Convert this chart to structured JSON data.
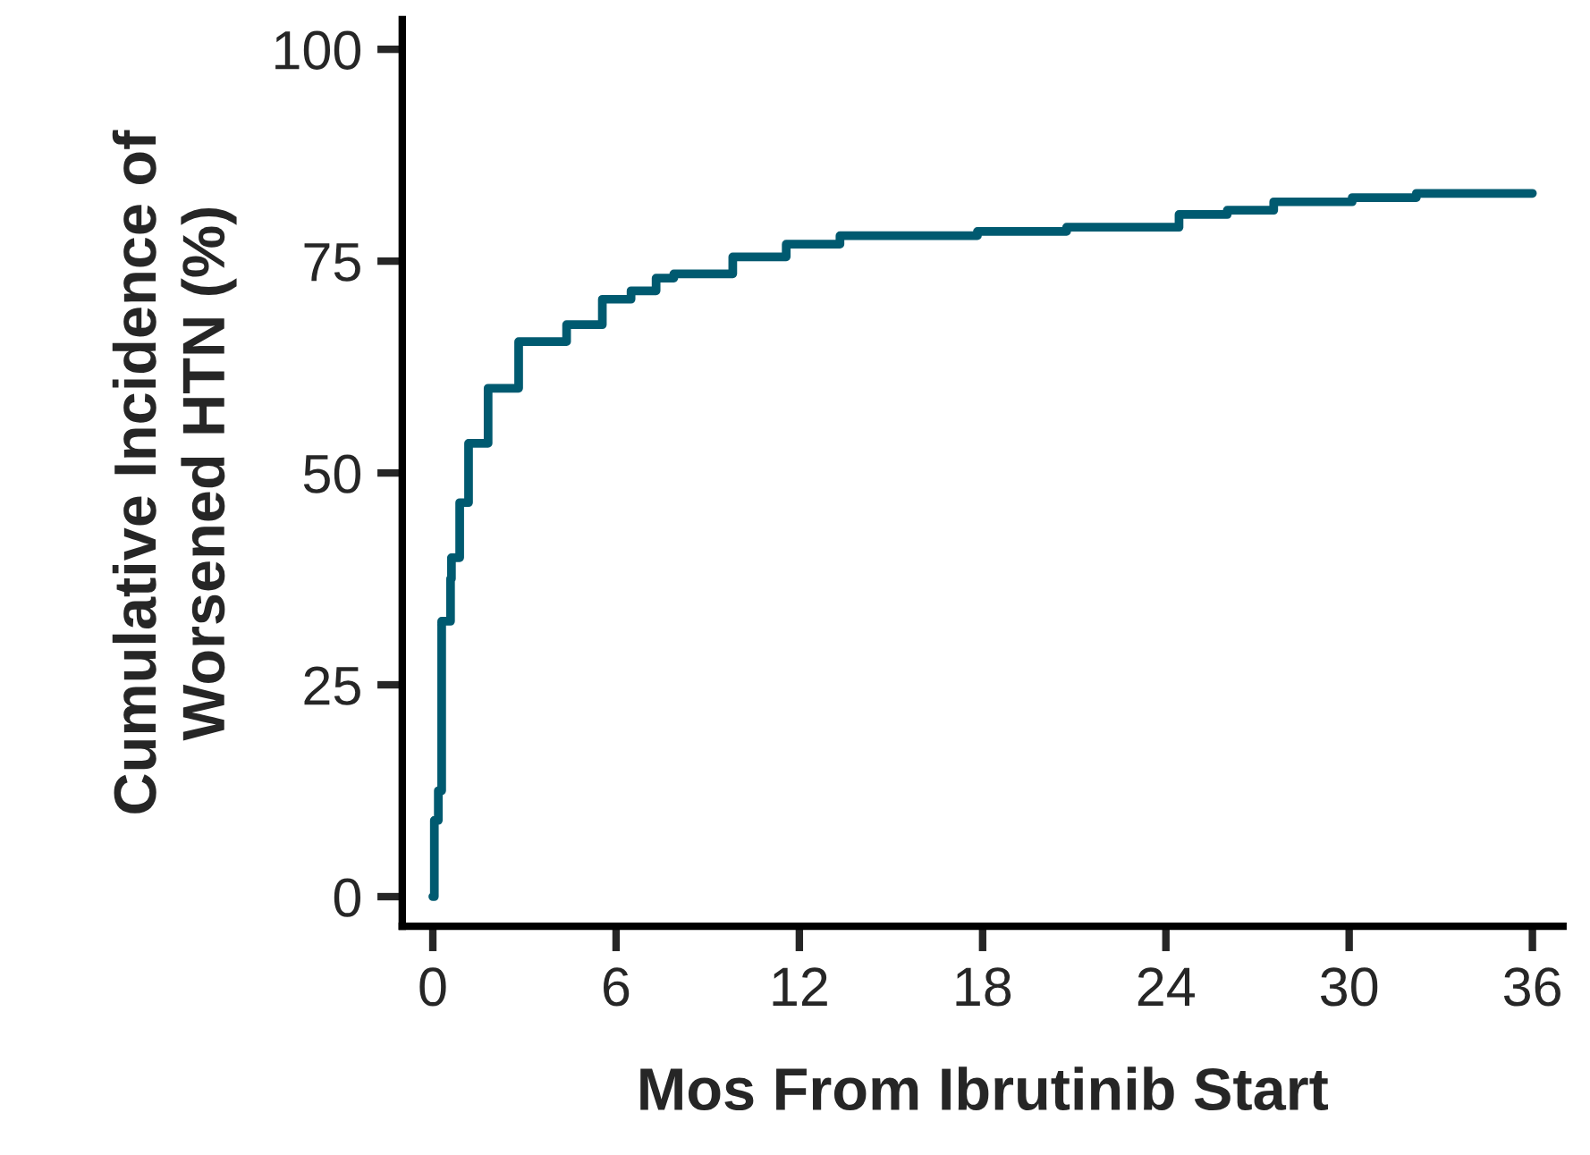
{
  "chart_data": {
    "type": "step",
    "xlabel": "Mos From Ibrutinib Start",
    "ylabel": "Cumulative Incidence of\nWorsened HTN (%)",
    "x": [
      0,
      0.05,
      0.18,
      0.29,
      0.58,
      0.61,
      0.88,
      1.17,
      1.81,
      2.81,
      4.38,
      5.55,
      6.49,
      7.31,
      7.89,
      9.82,
      11.57,
      13.33,
      16.07,
      17.83,
      20.75,
      23.67,
      24.43,
      26.01,
      27.53,
      30.1,
      32.2,
      36
    ],
    "series": [
      {
        "color": "#005a70",
        "values": [
          0,
          9,
          12.5,
          32.5,
          37.5,
          40,
          46.5,
          53.5,
          60,
          65.5,
          67.5,
          70.5,
          71.5,
          73,
          73.5,
          75.5,
          77,
          78,
          78,
          78.5,
          79,
          79,
          80.5,
          81,
          82,
          82.5,
          83,
          83
        ]
      }
    ],
    "xlim": [
      -1,
      37
    ],
    "ylim": [
      -3.5,
      103.5
    ],
    "xticks": [
      0,
      6,
      12,
      18,
      24,
      30,
      36
    ],
    "yticks": [
      0,
      25,
      50,
      75,
      100
    ],
    "grid": false,
    "legend": false
  }
}
